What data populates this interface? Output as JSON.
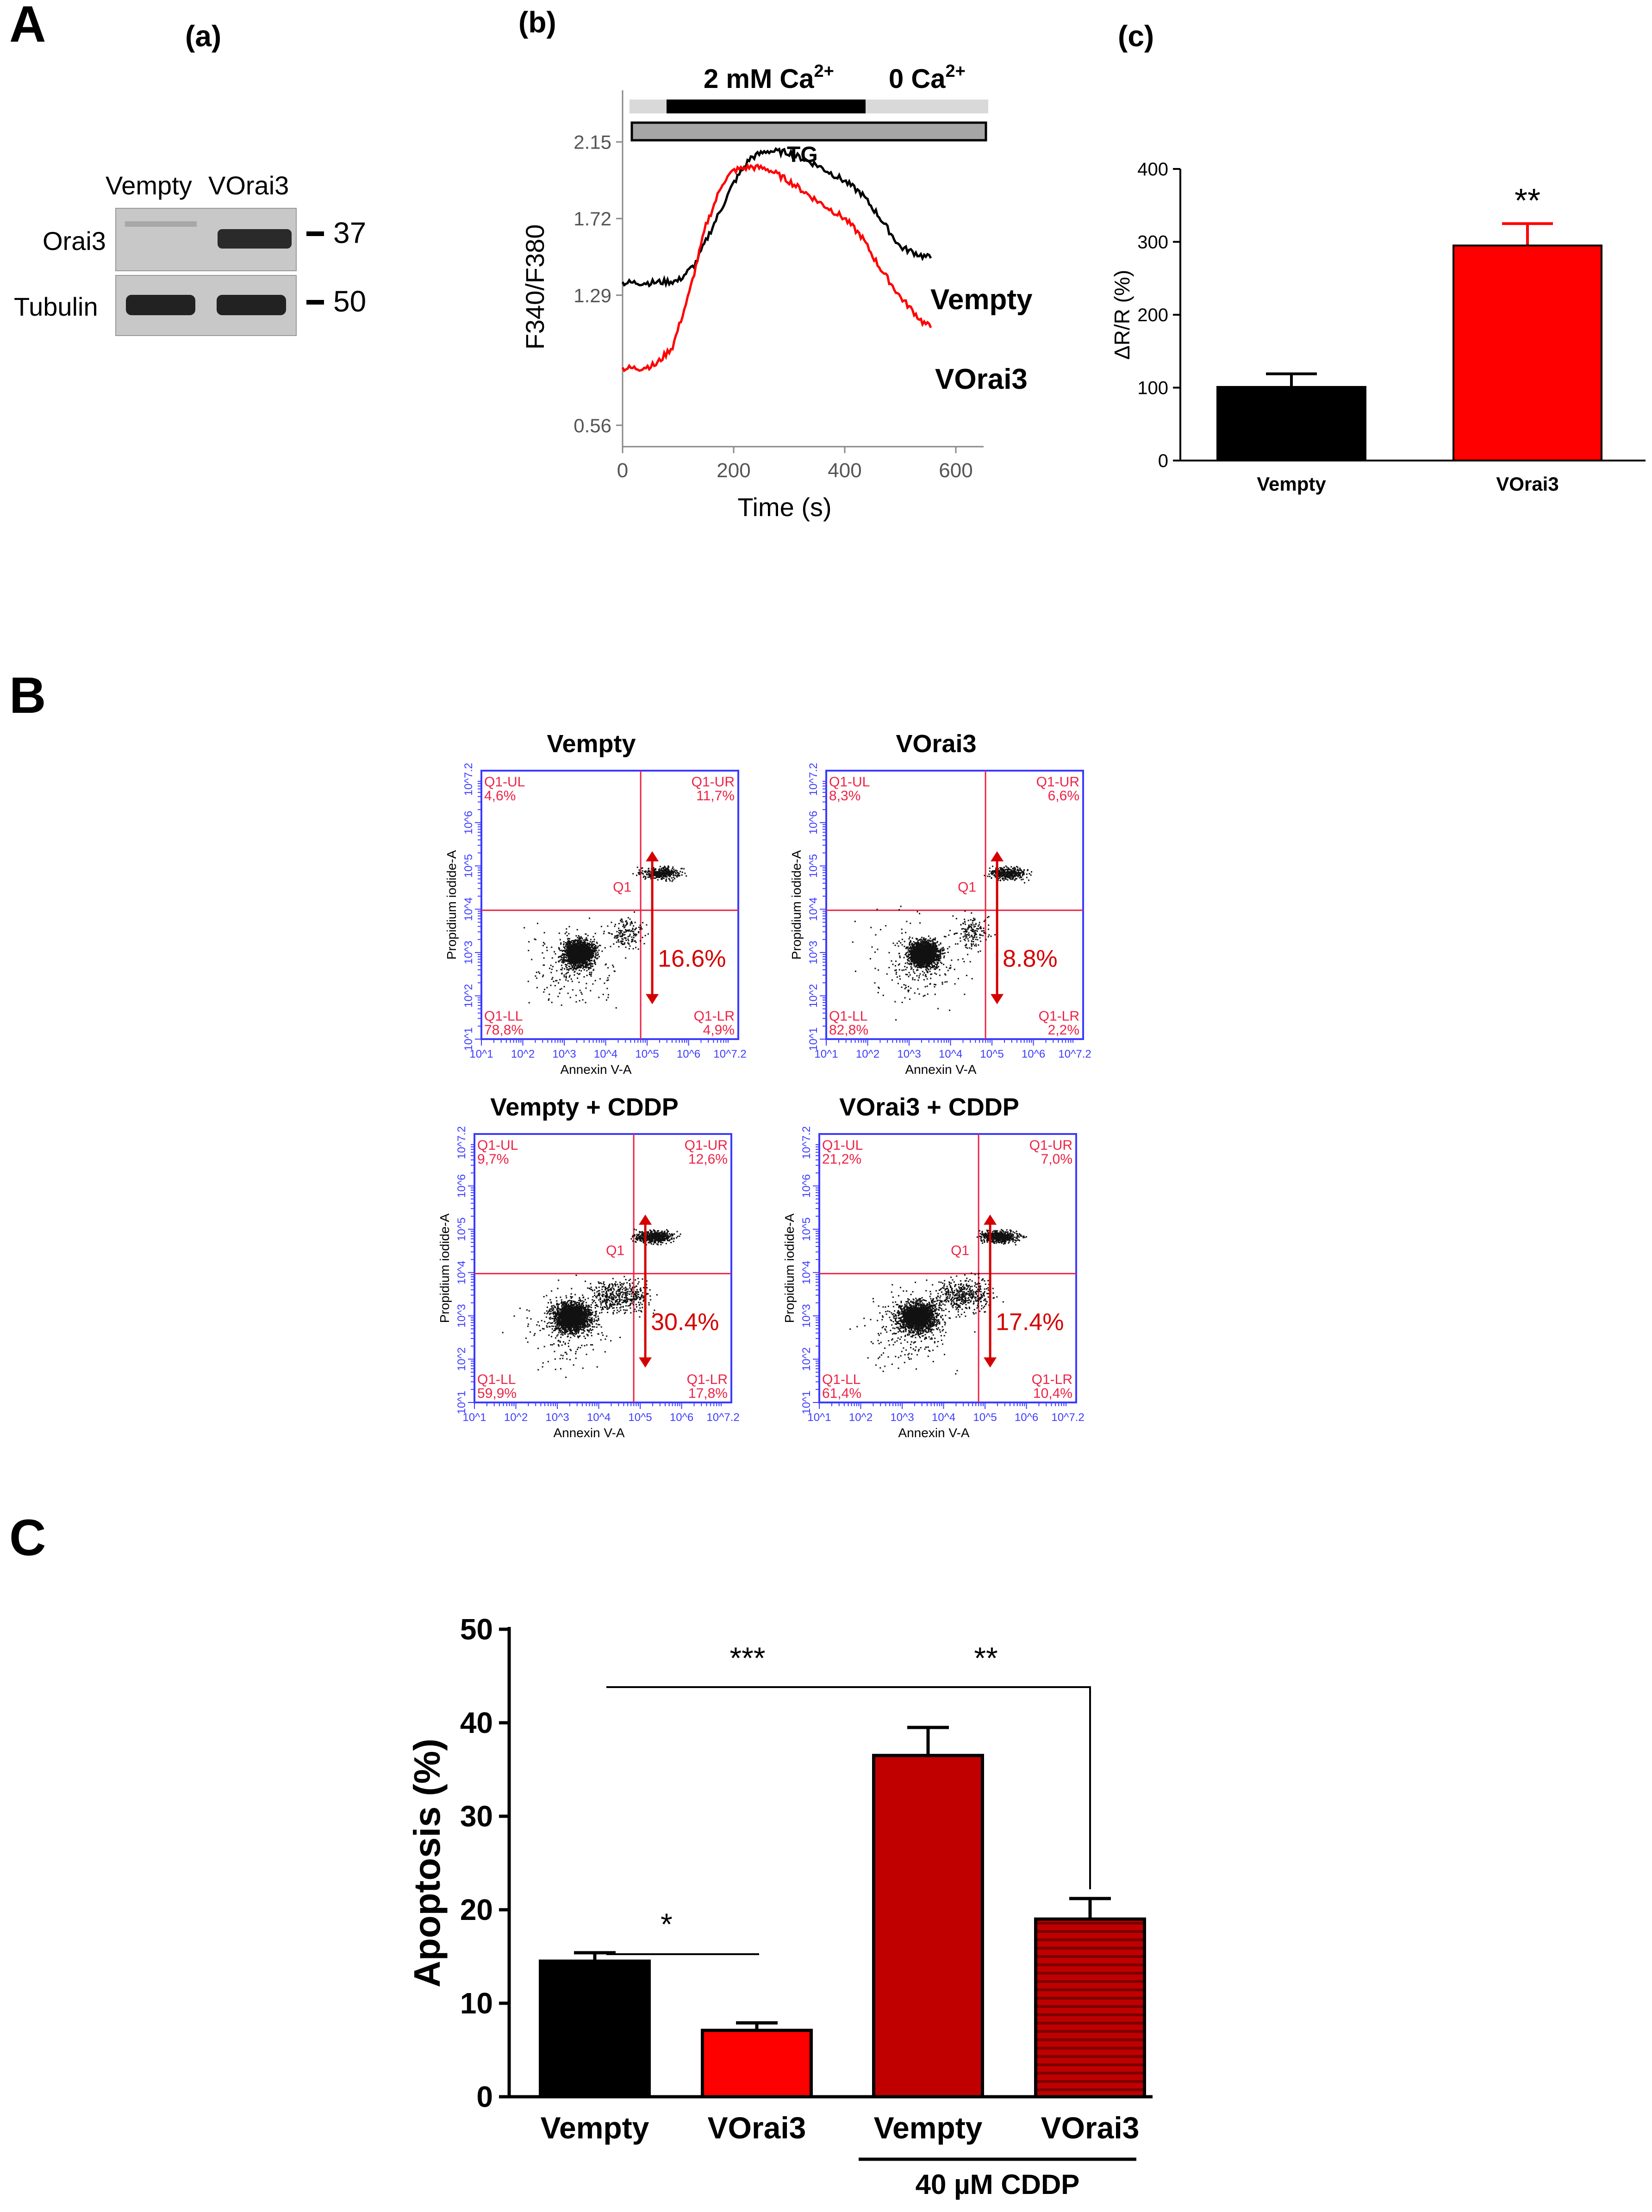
{
  "figure": {
    "panels": {
      "A": "A",
      "B": "B",
      "C": "C"
    },
    "subpanels": {
      "a": "(a)",
      "b": "(b)",
      "c": "(c)"
    }
  },
  "colors": {
    "black": "#000000",
    "red": "#ff0000",
    "dark_red": "#c00000",
    "flow_blue": "#3b3bff",
    "flow_red": "#ee2244",
    "light_grey_bar": "#d9d9d9",
    "tg_bar": "#a6a6a6"
  },
  "blot": {
    "lane_labels": [
      "Vempty",
      "VOrai3"
    ],
    "row_labels": [
      "Orai3",
      "Tubulin"
    ],
    "markers": [
      "37",
      "50"
    ]
  },
  "trace": {
    "ca_label": "2 mM Ca",
    "ca_sup": "2+",
    "zero_ca_label": "0 Ca",
    "zero_ca_sup": "2+",
    "tg_label": "TG",
    "series_labels": [
      "Vempty",
      "VOrai3"
    ]
  },
  "flow": {
    "x_label": "Annexin V-A",
    "y_label": "Propidium iodide-A",
    "gate_label": "Q1",
    "axis_ticks": [
      "10^1",
      "10^2",
      "10^3",
      "10^4",
      "10^5",
      "10^6",
      "10^7.2"
    ],
    "plots": [
      {
        "title": "Vempty",
        "UL": "Q1-UL\n4,6%",
        "UR": "Q1-UR\n11,7%",
        "LL": "Q1-LL\n78,8%",
        "LR": "Q1-LR\n4,9%",
        "apoptosis": "16.6%"
      },
      {
        "title": "VOrai3",
        "UL": "Q1-UL\n8,3%",
        "UR": "Q1-UR\n6,6%",
        "LL": "Q1-LL\n82,8%",
        "LR": "Q1-LR\n2,2%",
        "apoptosis": "8.8%"
      },
      {
        "title": "Vempty + CDDP",
        "UL": "Q1-UL\n9,7%",
        "UR": "Q1-UR\n12,6%",
        "LL": "Q1-LL\n59,9%",
        "LR": "Q1-LR\n17,8%",
        "apoptosis": "30.4%"
      },
      {
        "title": "VOrai3 + CDDP",
        "UL": "Q1-UL\n21,2%",
        "UR": "Q1-UR\n7,0%",
        "LL": "Q1-LL\n61,4%",
        "LR": "Q1-LR\n10,4%",
        "apoptosis": "17.4%"
      }
    ]
  },
  "chart_data": [
    {
      "id": "trace",
      "type": "line",
      "xlabel": "Time (s)",
      "ylabel": "F340/F380",
      "xlim": [
        0,
        650
      ],
      "ylim": [
        0.44,
        2.44
      ],
      "xticks": [
        0,
        200,
        400,
        600
      ],
      "yticks": [
        0.56,
        1.29,
        1.72,
        2.15
      ],
      "series": [
        {
          "name": "Vempty",
          "color": "#000000",
          "x": [
            0,
            50,
            100,
            130,
            160,
            200,
            230,
            260,
            300,
            350,
            400,
            430,
            460,
            500,
            540,
            555
          ],
          "y": [
            1.36,
            1.36,
            1.37,
            1.46,
            1.66,
            1.92,
            2.06,
            2.1,
            2.09,
            2.02,
            1.93,
            1.86,
            1.74,
            1.56,
            1.51,
            1.5
          ]
        },
        {
          "name": "VOrai3",
          "color": "#ff0000",
          "x": [
            0,
            30,
            60,
            90,
            120,
            150,
            180,
            200,
            230,
            260,
            300,
            350,
            400,
            430,
            460,
            500,
            540,
            555
          ],
          "y": [
            0.88,
            0.88,
            0.9,
            1.0,
            1.3,
            1.68,
            1.92,
            1.99,
            2.01,
            2.0,
            1.93,
            1.82,
            1.72,
            1.62,
            1.46,
            1.28,
            1.14,
            1.11
          ]
        }
      ]
    },
    {
      "id": "ratio",
      "type": "bar",
      "categories": [
        "Vempty",
        "VOrai3"
      ],
      "values": [
        101,
        295
      ],
      "errors": [
        18,
        30
      ],
      "colors": [
        "#000000",
        "#ff0000"
      ],
      "ylabel": "ΔR/R (%)",
      "ylim": [
        0,
        400
      ],
      "yticks": [
        0,
        100,
        200,
        300,
        400
      ],
      "significance": [
        "",
        "**"
      ]
    },
    {
      "id": "apoptosis",
      "type": "bar",
      "categories": [
        "Vempty",
        "VOrai3",
        "Vempty",
        "VOrai3"
      ],
      "values": [
        14.5,
        7.1,
        36.5,
        19.0
      ],
      "errors": [
        0.9,
        0.8,
        3.0,
        2.2
      ],
      "colors": [
        "#000000",
        "#ff0000",
        "#c00000",
        "#c00000"
      ],
      "patterns": [
        "solid",
        "solid",
        "solid",
        "hlines"
      ],
      "ylabel": "Apoptosis (%)",
      "ylim": [
        0,
        50
      ],
      "yticks": [
        0,
        10,
        20,
        30,
        40,
        50
      ],
      "group_label": "40 µM CDDP",
      "significance": [
        {
          "from": 0,
          "to": 1,
          "label": "*"
        },
        {
          "from": 0,
          "to": 2,
          "label": "***"
        },
        {
          "from": 2,
          "to": 3,
          "label": "**"
        }
      ]
    }
  ]
}
